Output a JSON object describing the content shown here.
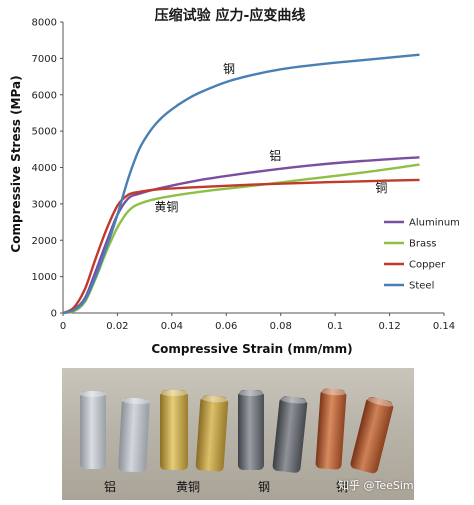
{
  "chart_data": {
    "type": "line",
    "title": "压缩试验 应力-应变曲线",
    "xlabel": "Compressive Strain (mm/mm)",
    "ylabel": "Compressive Stress (MPa)",
    "xlim": [
      0,
      0.14
    ],
    "ylim": [
      0,
      8000
    ],
    "xticks": [
      "0",
      "0.02",
      "0.04",
      "0.06",
      "0.08",
      "0.1",
      "0.12",
      "0.14"
    ],
    "yticks": [
      "0",
      "1000",
      "2000",
      "3000",
      "4000",
      "5000",
      "6000",
      "7000",
      "8000"
    ],
    "grid": false,
    "legend_position": "right",
    "series": [
      {
        "name": "Aluminum",
        "color": "#7b4fa0",
        "x": [
          0,
          0.004,
          0.008,
          0.012,
          0.016,
          0.02,
          0.024,
          0.028,
          0.035,
          0.05,
          0.07,
          0.09,
          0.11,
          0.131
        ],
        "y": [
          0,
          100,
          400,
          1150,
          1950,
          2700,
          3150,
          3280,
          3420,
          3650,
          3870,
          4050,
          4180,
          4280
        ]
      },
      {
        "name": "Brass",
        "color": "#8fbf45",
        "x": [
          0,
          0.004,
          0.008,
          0.012,
          0.016,
          0.02,
          0.024,
          0.028,
          0.035,
          0.05,
          0.07,
          0.09,
          0.11,
          0.131
        ],
        "y": [
          0,
          50,
          300,
          950,
          1700,
          2350,
          2800,
          3000,
          3150,
          3330,
          3500,
          3680,
          3860,
          4080
        ]
      },
      {
        "name": "Copper",
        "color": "#c0392b",
        "x": [
          0,
          0.004,
          0.008,
          0.012,
          0.016,
          0.02,
          0.024,
          0.028,
          0.035,
          0.05,
          0.07,
          0.09,
          0.11,
          0.131
        ],
        "y": [
          0,
          150,
          650,
          1500,
          2300,
          2950,
          3250,
          3330,
          3400,
          3460,
          3530,
          3580,
          3620,
          3660
        ]
      },
      {
        "name": "Steel",
        "color": "#4a7fb5",
        "x": [
          0,
          0.004,
          0.008,
          0.012,
          0.016,
          0.02,
          0.024,
          0.028,
          0.032,
          0.036,
          0.04,
          0.045,
          0.05,
          0.06,
          0.07,
          0.08,
          0.09,
          0.1,
          0.11,
          0.12,
          0.131
        ],
        "y": [
          0,
          80,
          350,
          1000,
          1800,
          2700,
          3700,
          4500,
          5000,
          5350,
          5600,
          5850,
          6050,
          6350,
          6550,
          6700,
          6800,
          6880,
          6950,
          7020,
          7100
        ]
      }
    ],
    "annotations": [
      {
        "text": "钢",
        "x": 0.061,
        "y": 6600
      },
      {
        "text": "铝",
        "x": 0.078,
        "y": 4200
      },
      {
        "text": "铜",
        "x": 0.117,
        "y": 3320
      },
      {
        "text": "黄铜",
        "x": 0.038,
        "y": 2800
      }
    ]
  },
  "photo": {
    "labels": [
      "铝",
      "黄铜",
      "钢",
      "铜"
    ],
    "watermark": "知乎 @TeeSim",
    "colors": {
      "aluminum": "#b7bcc2",
      "brass": "#c9a94a",
      "steel": "#6e7177",
      "copper": "#b0603a"
    }
  }
}
